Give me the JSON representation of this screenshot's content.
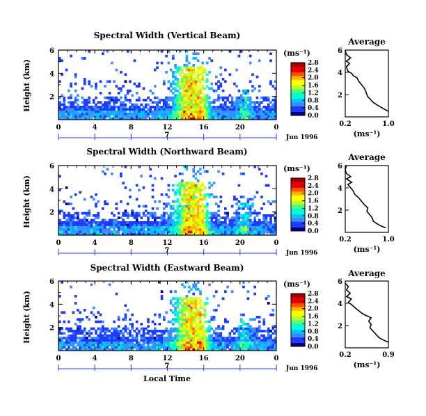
{
  "chart_data": [
    {
      "type": "heatmap",
      "title": "Spectral Width (Vertical Beam)",
      "ylabel": "Height (km)",
      "xlim": [
        0,
        24
      ],
      "ylim": [
        0,
        6
      ],
      "xticks": [
        "0",
        "4",
        "8",
        "12",
        "16",
        "20",
        "0"
      ],
      "yticks": [
        "2",
        "4",
        "6"
      ],
      "day_label": "7",
      "date_label": "Jun 1996",
      "colorbar": {
        "unit": "(ms⁻¹)",
        "ticks": [
          "0.0",
          "0.4",
          "0.8",
          "1.2",
          "1.6",
          "2.0",
          "2.4",
          "2.8"
        ],
        "range": [
          0,
          2.8
        ]
      },
      "average": {
        "title": "Average",
        "xlabel": "(ms⁻¹)",
        "xticks": [
          "0.2",
          "1.0"
        ],
        "xlim": [
          0.2,
          1.0
        ],
        "yticks": [
          "2",
          "4",
          "6"
        ],
        "ylim": [
          0,
          6
        ],
        "profile": [
          [
            1.0,
            0.5
          ],
          [
            0.92,
            0.7
          ],
          [
            0.85,
            0.9
          ],
          [
            0.78,
            1.1
          ],
          [
            0.72,
            1.3
          ],
          [
            0.68,
            1.5
          ],
          [
            0.62,
            1.8
          ],
          [
            0.6,
            2.0
          ],
          [
            0.58,
            2.3
          ],
          [
            0.55,
            2.6
          ],
          [
            0.5,
            2.9
          ],
          [
            0.45,
            3.2
          ],
          [
            0.42,
            3.5
          ],
          [
            0.35,
            3.7
          ],
          [
            0.32,
            3.9
          ],
          [
            0.25,
            4.1
          ],
          [
            0.22,
            4.5
          ],
          [
            0.28,
            4.8
          ],
          [
            0.22,
            5.0
          ],
          [
            0.3,
            5.3
          ],
          [
            0.22,
            5.6
          ],
          [
            0.2,
            6.0
          ]
        ]
      }
    },
    {
      "type": "heatmap",
      "title": "Spectral Width (Northward Beam)",
      "ylabel": "Height (km)",
      "xlim": [
        0,
        24
      ],
      "ylim": [
        0,
        6
      ],
      "xticks": [
        "0",
        "4",
        "8",
        "12",
        "16",
        "20",
        "0"
      ],
      "yticks": [
        "2",
        "4",
        "6"
      ],
      "day_label": "7",
      "date_label": "Jun 1996",
      "colorbar": {
        "unit": "(ms⁻¹)",
        "ticks": [
          "0.0",
          "0.4",
          "0.8",
          "1.2",
          "1.6",
          "2.0",
          "2.4",
          "2.8"
        ],
        "range": [
          0,
          2.8
        ]
      },
      "average": {
        "title": "Average",
        "xlabel": "(ms⁻¹)",
        "xticks": [
          "0.2",
          "1.0"
        ],
        "xlim": [
          0.2,
          1.0
        ],
        "yticks": [
          "2",
          "4",
          "6"
        ],
        "ylim": [
          0,
          6
        ],
        "profile": [
          [
            0.95,
            0.4
          ],
          [
            0.85,
            0.6
          ],
          [
            0.78,
            0.8
          ],
          [
            0.72,
            1.0
          ],
          [
            0.7,
            1.3
          ],
          [
            0.65,
            1.6
          ],
          [
            0.6,
            1.9
          ],
          [
            0.62,
            2.2
          ],
          [
            0.55,
            2.5
          ],
          [
            0.5,
            2.8
          ],
          [
            0.45,
            3.1
          ],
          [
            0.38,
            3.4
          ],
          [
            0.35,
            3.7
          ],
          [
            0.3,
            4.0
          ],
          [
            0.25,
            4.3
          ],
          [
            0.32,
            4.5
          ],
          [
            0.22,
            4.8
          ],
          [
            0.3,
            5.0
          ],
          [
            0.22,
            5.3
          ],
          [
            0.2,
            5.6
          ],
          [
            0.22,
            6.0
          ]
        ]
      }
    },
    {
      "type": "heatmap",
      "title": "Spectral Width (Eastward Beam)",
      "ylabel": "Height (km)",
      "xlabel": "Local Time",
      "xlim": [
        0,
        24
      ],
      "ylim": [
        0,
        6
      ],
      "xticks": [
        "0",
        "4",
        "8",
        "12",
        "16",
        "20",
        "0"
      ],
      "yticks": [
        "2",
        "4",
        "6"
      ],
      "day_label": "7",
      "date_label": "Jun 1996",
      "colorbar": {
        "unit": "(ms⁻¹)",
        "ticks": [
          "0.0",
          "0.4",
          "0.8",
          "1.2",
          "1.6",
          "2.0",
          "2.4",
          "2.8"
        ],
        "range": [
          0,
          2.8
        ]
      },
      "average": {
        "title": "Average",
        "xlabel": "(ms⁻¹)",
        "xticks": [
          "0.2",
          "0.9"
        ],
        "xlim": [
          0.2,
          0.9
        ],
        "yticks": [
          "2",
          "4",
          "6"
        ],
        "ylim": [
          0,
          6
        ],
        "profile": [
          [
            0.9,
            0.5
          ],
          [
            0.82,
            0.7
          ],
          [
            0.75,
            0.9
          ],
          [
            0.7,
            1.2
          ],
          [
            0.65,
            1.5
          ],
          [
            0.6,
            1.8
          ],
          [
            0.62,
            2.1
          ],
          [
            0.58,
            2.4
          ],
          [
            0.62,
            2.7
          ],
          [
            0.5,
            3.0
          ],
          [
            0.45,
            3.2
          ],
          [
            0.38,
            3.5
          ],
          [
            0.32,
            3.8
          ],
          [
            0.25,
            4.1
          ],
          [
            0.3,
            4.4
          ],
          [
            0.22,
            4.6
          ],
          [
            0.28,
            4.9
          ],
          [
            0.22,
            5.2
          ],
          [
            0.25,
            5.5
          ],
          [
            0.2,
            5.8
          ]
        ]
      }
    }
  ],
  "colors": {
    "scale": [
      "#000080",
      "#1e3cff",
      "#3c8cff",
      "#00c8ff",
      "#00ffd2",
      "#50ff78",
      "#b4ff32",
      "#ffff00",
      "#ffb400",
      "#ff5000",
      "#e60000",
      "#a00000"
    ]
  }
}
